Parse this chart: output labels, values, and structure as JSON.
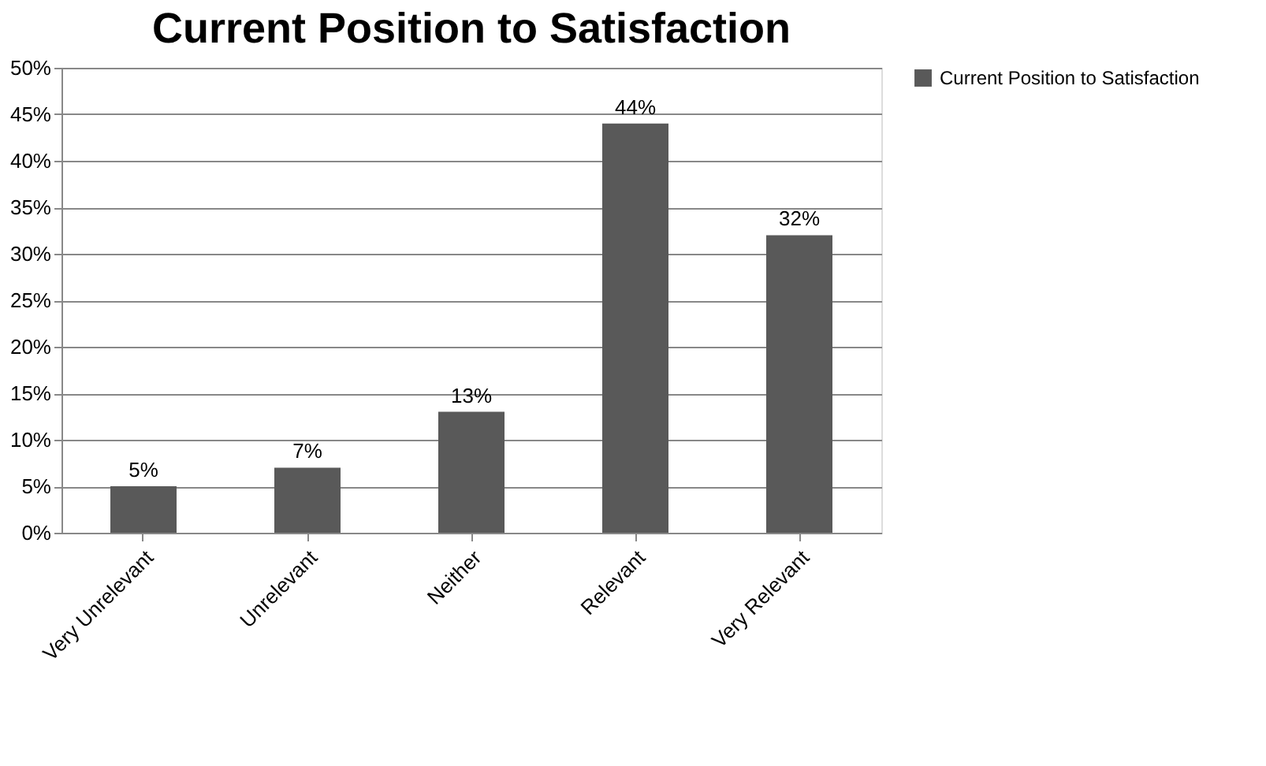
{
  "chart_data": {
    "type": "bar",
    "title": "Current Position to Satisfaction",
    "categories": [
      "Very Unrelevant",
      "Unrelevant",
      "Neither",
      "Relevant",
      "Very Relevant"
    ],
    "series": [
      {
        "name": "Current Position to Satisfaction",
        "color": "#595959",
        "values": [
          5,
          7,
          13,
          44,
          32
        ],
        "value_labels": [
          "5%",
          "7%",
          "13%",
          "44%",
          "32%"
        ]
      }
    ],
    "ylim": [
      0,
      50
    ],
    "yticks": [
      {
        "value": 0,
        "label": "0%"
      },
      {
        "value": 5,
        "label": "5%"
      },
      {
        "value": 10,
        "label": "10%"
      },
      {
        "value": 15,
        "label": "15%"
      },
      {
        "value": 20,
        "label": "20%"
      },
      {
        "value": 25,
        "label": "25%"
      },
      {
        "value": 30,
        "label": "30%"
      },
      {
        "value": 35,
        "label": "35%"
      },
      {
        "value": 40,
        "label": "40%"
      },
      {
        "value": 45,
        "label": "45%"
      },
      {
        "value": 50,
        "label": "50%"
      }
    ],
    "grid": "y",
    "legend": "right"
  }
}
